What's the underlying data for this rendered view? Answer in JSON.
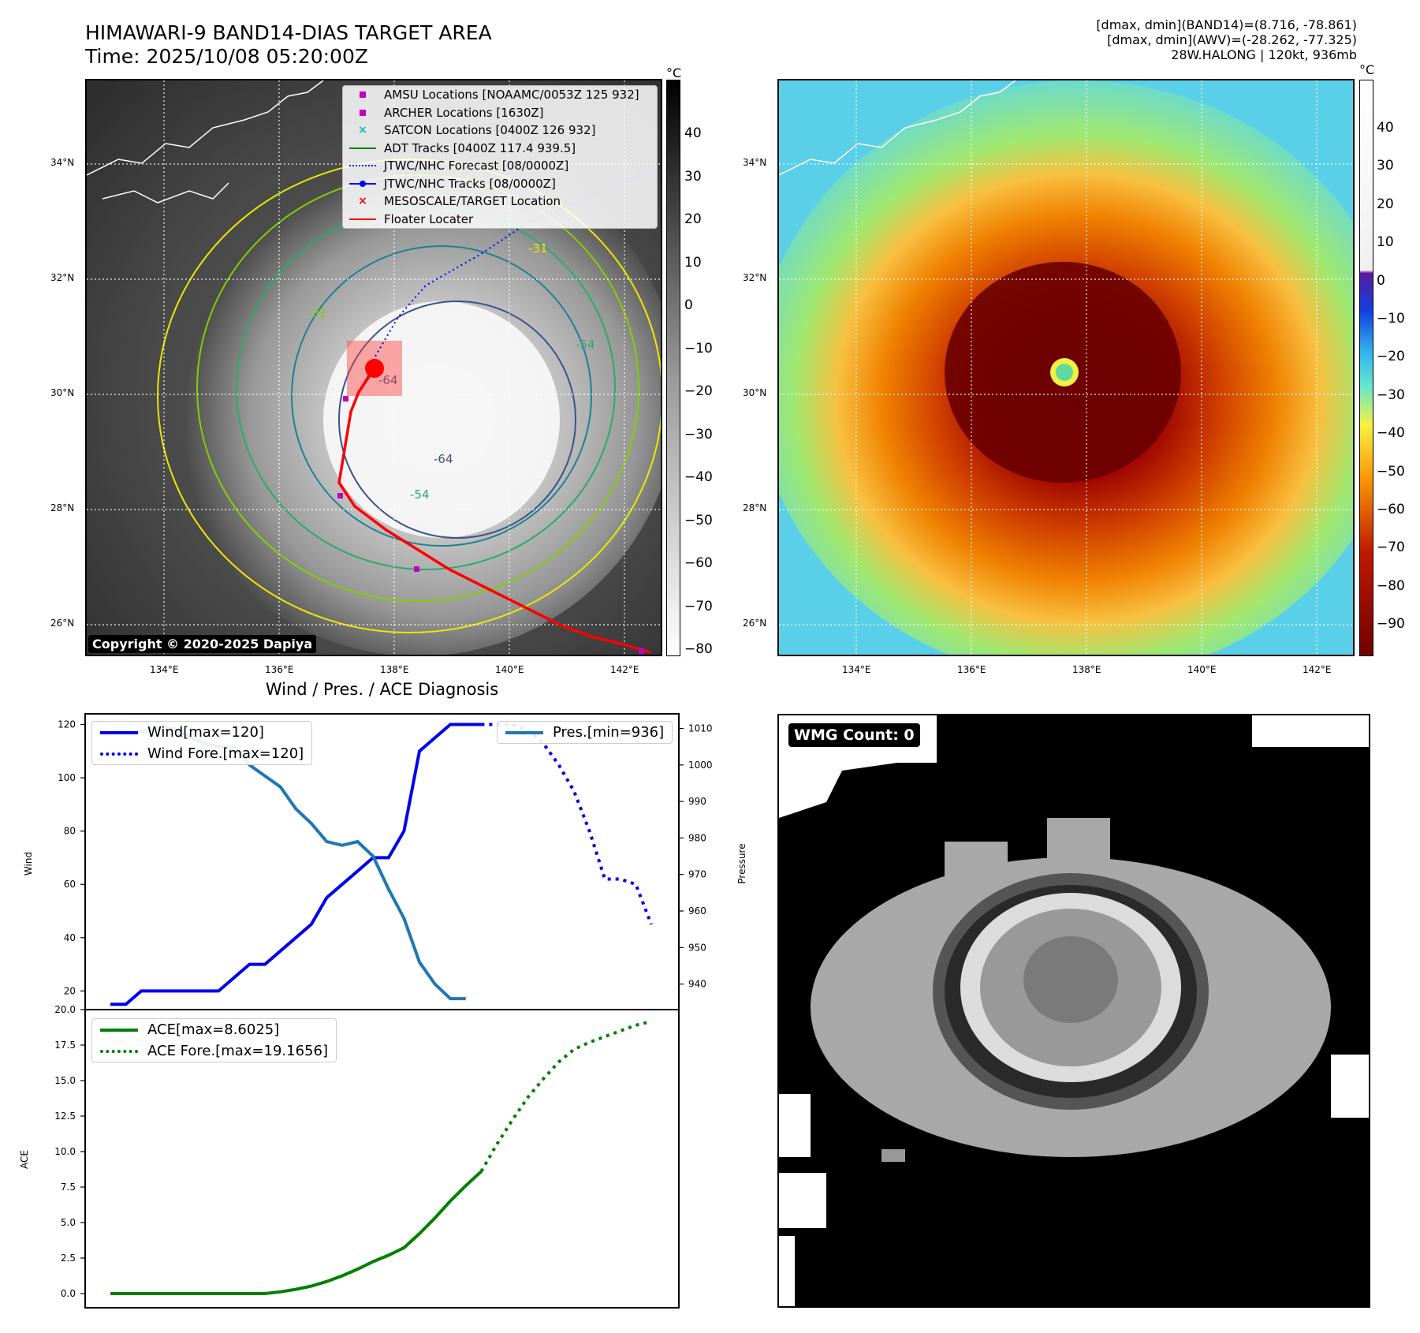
{
  "header": {
    "title_line1": "HIMAWARI-9 BAND14-DIAS TARGET AREA",
    "title_line2": "Time: 2025/10/08 05:20:00Z",
    "meta_line1": "[dmax, dmin](BAND14)=(8.716, -78.861)",
    "meta_line2": "[dmax, dmin](AWV)=(-28.262, -77.325)",
    "meta_line3": "28W.HALONG | 120kt, 936mb"
  },
  "maps": {
    "lat_labels": [
      "34°N",
      "32°N",
      "30°N",
      "28°N",
      "26°N"
    ],
    "lon_labels": [
      "134°E",
      "136°E",
      "138°E",
      "140°E",
      "142°E"
    ],
    "copyright": "Copyright © 2020-2025 Dapiya",
    "unit": "°C",
    "bw_colorbar_ticks": [
      "40",
      "30",
      "20",
      "10",
      "0",
      "−10",
      "−20",
      "−30",
      "−40",
      "−50",
      "−60",
      "−70",
      "−80"
    ],
    "color_colorbar_ticks": [
      "40",
      "30",
      "20",
      "10",
      "0",
      "−10",
      "−20",
      "−30",
      "−40",
      "−50",
      "−60",
      "−70",
      "−80",
      "−90"
    ],
    "contour_labels": [
      "-31",
      "-54",
      "-64",
      "-31",
      "-54",
      "-64"
    ],
    "legend": [
      {
        "label": "AMSU Locations [NOAAMC/0053Z 125 932]",
        "color": "#c000c0",
        "marker": "square"
      },
      {
        "label": "ARCHER Locations [1630Z]",
        "color": "#c000c0",
        "marker": "square"
      },
      {
        "label": "SATCON Locations [0400Z 126 932]",
        "color": "#00c0c0",
        "marker": "x"
      },
      {
        "label": "ADT Tracks [0400Z 117.4 939.5]",
        "color": "#008000",
        "marker": "line"
      },
      {
        "label": "JTWC/NHC Forecast [08/0000Z]",
        "color": "#0000ff",
        "marker": "dotted"
      },
      {
        "label": "JTWC/NHC Tracks [08/0000Z]",
        "color": "#0000ff",
        "marker": "line-dot"
      },
      {
        "label": "MESOSCALE/TARGET Location",
        "color": "#ff0000",
        "marker": "x"
      },
      {
        "label": "Floater Locater",
        "color": "#ff0000",
        "marker": "line"
      }
    ]
  },
  "wmg": {
    "label": "WMG Count: 0"
  },
  "colors": {
    "wind": "#0000ee",
    "pressure": "#1f77b4",
    "ace": "#008000",
    "target": "#ff0000"
  },
  "chart_data": [
    {
      "type": "line",
      "title": "Wind / Pres. / ACE Diagnosis",
      "ylabel": "Wind",
      "y2label": "Pressure",
      "ylim": [
        13,
        124
      ],
      "y2lim": [
        933,
        1014
      ],
      "yticks": [
        20,
        40,
        60,
        80,
        100,
        120
      ],
      "y2ticks": [
        940,
        950,
        960,
        970,
        980,
        990,
        1000,
        1010
      ],
      "x": [
        0,
        1,
        2,
        3,
        4,
        5,
        6,
        7,
        8,
        9,
        10,
        11,
        12,
        13,
        14,
        15,
        16,
        17,
        18,
        19,
        20,
        21,
        22,
        23,
        24,
        25,
        26,
        27,
        28,
        29,
        30,
        31,
        32,
        33,
        34,
        35
      ],
      "series": [
        {
          "name": "Wind[max=120]",
          "style": "solid",
          "x": [
            0,
            1,
            2,
            3,
            4,
            5,
            6,
            7,
            8,
            9,
            10,
            11,
            12,
            13,
            14,
            15,
            16,
            17,
            18,
            19,
            20,
            21,
            22,
            23,
            24
          ],
          "values": [
            15,
            15,
            20,
            20,
            20,
            20,
            20,
            20,
            25,
            30,
            30,
            35,
            40,
            45,
            55,
            60,
            65,
            70,
            70,
            80,
            110,
            115,
            120,
            120,
            120
          ]
        },
        {
          "name": "Wind Fore.[max=120]",
          "style": "dotted",
          "x": [
            24,
            25,
            26,
            27,
            28,
            29,
            30,
            31,
            32,
            33,
            34,
            35
          ],
          "values": [
            120,
            120,
            120,
            118,
            113,
            105,
            95,
            80,
            62,
            62,
            60,
            45
          ]
        },
        {
          "name": "Pres.[min=936]",
          "style": "solid",
          "axis": "right",
          "x": [
            1,
            2,
            3,
            4,
            5,
            6,
            7,
            8,
            9,
            10,
            11,
            12,
            13,
            14,
            15,
            16,
            17,
            18,
            19,
            20,
            21,
            22,
            23
          ],
          "values": [
            1009,
            1009,
            1010,
            1010,
            1008,
            1006,
            1005,
            1005,
            1000,
            997,
            994,
            988,
            984,
            979,
            978,
            979,
            975,
            966,
            958,
            946,
            940,
            936,
            936
          ]
        }
      ]
    },
    {
      "type": "line",
      "ylabel": "ACE",
      "ylim": [
        -1,
        20
      ],
      "yticks": [
        "0.0",
        "2.5",
        "5.0",
        "7.5",
        "10.0",
        "12.5",
        "15.0",
        "17.5",
        "20.0"
      ],
      "series": [
        {
          "name": "ACE[max=8.6025]",
          "style": "solid",
          "x": [
            0,
            1,
            2,
            3,
            4,
            5,
            6,
            7,
            8,
            9,
            10,
            11,
            12,
            13,
            14,
            15,
            16,
            17,
            18,
            19,
            20,
            21,
            22,
            23,
            24
          ],
          "values": [
            0,
            0,
            0,
            0,
            0,
            0,
            0,
            0,
            0,
            0,
            0,
            0.12,
            0.3,
            0.52,
            0.85,
            1.25,
            1.72,
            2.25,
            2.7,
            3.23,
            4.22,
            5.32,
            6.52,
            7.6,
            8.6025
          ]
        },
        {
          "name": "ACE Fore.[max=19.1656]",
          "style": "dotted",
          "x": [
            24,
            25,
            26,
            27,
            28,
            29,
            30,
            31,
            32,
            33,
            34,
            35
          ],
          "values": [
            8.6025,
            10.5,
            12.2,
            13.8,
            15.1,
            16.3,
            17.2,
            17.7,
            18.1,
            18.5,
            18.9,
            19.1656
          ]
        }
      ]
    }
  ]
}
